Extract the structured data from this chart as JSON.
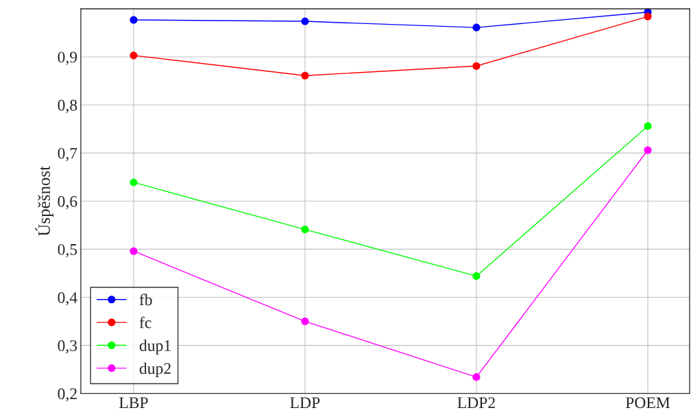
{
  "chart_data": {
    "type": "line",
    "ylabel": "Úspěšnost",
    "categories": [
      "LBP",
      "LDP",
      "LDP2",
      "POEM"
    ],
    "series": [
      {
        "name": "fb",
        "color": "#0000ff",
        "values": [
          0.977,
          0.974,
          0.961,
          0.993
        ]
      },
      {
        "name": "fc",
        "color": "#ff0000",
        "values": [
          0.903,
          0.861,
          0.881,
          0.984
        ]
      },
      {
        "name": "dup1",
        "color": "#00ff00",
        "values": [
          0.639,
          0.541,
          0.444,
          0.756
        ]
      },
      {
        "name": "dup2",
        "color": "#ff00ff",
        "values": [
          0.496,
          0.35,
          0.234,
          0.706
        ]
      }
    ],
    "ylim": [
      0.2,
      1.0
    ],
    "yticks": [
      {
        "value": 0.2,
        "label": "0,2"
      },
      {
        "value": 0.3,
        "label": "0,3"
      },
      {
        "value": 0.4,
        "label": "0,4"
      },
      {
        "value": 0.5,
        "label": "0,5"
      },
      {
        "value": 0.6,
        "label": "0,6"
      },
      {
        "value": 0.7,
        "label": "0,7"
      },
      {
        "value": 0.8,
        "label": "0,8"
      },
      {
        "value": 0.9,
        "label": "0,9"
      }
    ],
    "grid": true,
    "legend": "bottom left",
    "marker": "circle",
    "line_style": "solid"
  }
}
